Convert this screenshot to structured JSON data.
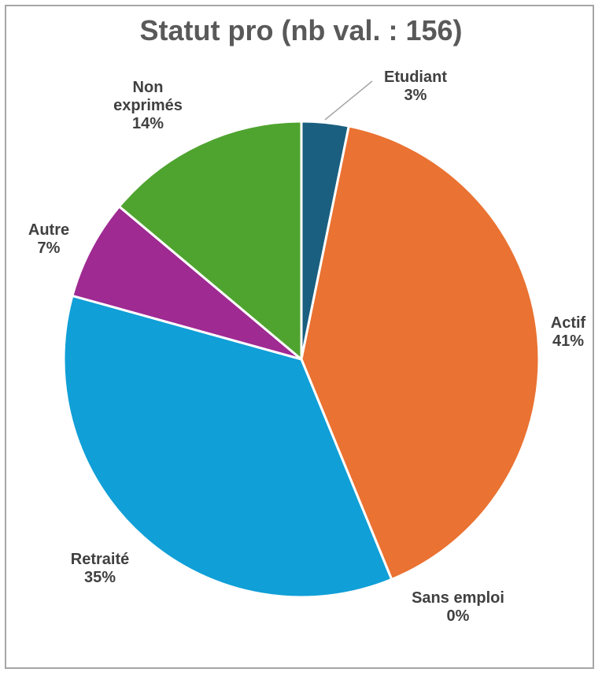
{
  "chart_data": {
    "type": "pie",
    "title": "Statut pro (nb val. : 156)",
    "slices": [
      {
        "label": "Etudiant",
        "percent_label": "3%",
        "value": 3.2,
        "color": "#1a5f80"
      },
      {
        "label": "Actif",
        "percent_label": "41%",
        "value": 40.6,
        "color": "#ea7232"
      },
      {
        "label": "Sans emploi",
        "percent_label": "0%",
        "value": 0,
        "color": "#7f7f7f"
      },
      {
        "label": "Retraité",
        "percent_label": "35%",
        "value": 35.5,
        "color": "#109fd7"
      },
      {
        "label": "Autre",
        "percent_label": "7%",
        "value": 6.8,
        "color": "#9e2a92"
      },
      {
        "label": "Non exprimés",
        "percent_label": "14%",
        "value": 13.9,
        "color": "#4fa42f"
      }
    ]
  }
}
